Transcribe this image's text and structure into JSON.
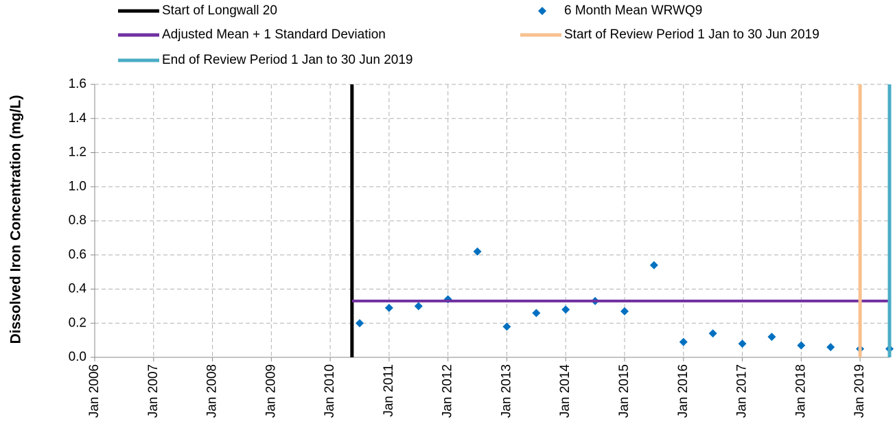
{
  "chart_data": {
    "type": "scatter",
    "y_label": "Dissolved Iron Concentration (mg/L)",
    "xlim": [
      2006,
      2019.5
    ],
    "xticks": [
      {
        "value": 2006,
        "label": "Jan 2006"
      },
      {
        "value": 2007,
        "label": "Jan 2007"
      },
      {
        "value": 2008,
        "label": "Jan 2008"
      },
      {
        "value": 2009,
        "label": "Jan 2009"
      },
      {
        "value": 2010,
        "label": "Jan 2010"
      },
      {
        "value": 2011,
        "label": "Jan 2011"
      },
      {
        "value": 2012,
        "label": "Jan 2012"
      },
      {
        "value": 2013,
        "label": "Jan 2013"
      },
      {
        "value": 2014,
        "label": "Jan 2014"
      },
      {
        "value": 2015,
        "label": "Jan 2015"
      },
      {
        "value": 2016,
        "label": "Jan 2016"
      },
      {
        "value": 2017,
        "label": "Jan 2017"
      },
      {
        "value": 2018,
        "label": "Jan 2018"
      },
      {
        "value": 2019,
        "label": "Jan 2019"
      }
    ],
    "ylim": [
      0,
      1.6
    ],
    "yticks": [
      {
        "value": 0,
        "label": "0.0"
      },
      {
        "value": 0.2,
        "label": "0.2"
      },
      {
        "value": 0.4,
        "label": "0.4"
      },
      {
        "value": 0.6,
        "label": "0.6"
      },
      {
        "value": 0.8,
        "label": "0.8"
      },
      {
        "value": 1,
        "label": "1.0"
      },
      {
        "value": 1.2,
        "label": "1.2"
      },
      {
        "value": 1.4,
        "label": "1.4"
      },
      {
        "value": 1.6,
        "label": "1.6"
      }
    ],
    "grid": true,
    "series": [
      {
        "name": "Start of Longwall 20",
        "color": "#000000",
        "mode": "line",
        "x": [
          2010.37,
          2010.37
        ],
        "values": [
          0,
          1.6
        ]
      },
      {
        "name": "6 Month Mean WRWQ9",
        "color": "#0070c0",
        "mode": "marker",
        "x": [
          2010.5,
          2011,
          2011.5,
          2012,
          2012.5,
          2013,
          2013.5,
          2014,
          2014.5,
          2015,
          2015.5,
          2016,
          2016.5,
          2017,
          2017.5,
          2018,
          2018.5,
          2019,
          2019.5
        ],
        "values": [
          0.2,
          0.29,
          0.3,
          0.34,
          0.62,
          0.18,
          0.26,
          0.28,
          0.33,
          0.27,
          0.54,
          0.09,
          0.14,
          0.08,
          0.12,
          0.07,
          0.06,
          0.05,
          0.05
        ]
      },
      {
        "name": "Adjusted Mean + 1 Standard Deviation",
        "color": "#7030a0",
        "mode": "line",
        "x": [
          2010.37,
          2019.5
        ],
        "values": [
          0.33,
          0.33
        ]
      },
      {
        "name": "Start of Review Period 1 Jan to 30 Jun 2019",
        "color": "#f8c08f",
        "mode": "line",
        "x": [
          2019,
          2019
        ],
        "values": [
          0,
          1.6
        ]
      },
      {
        "name": "End of Review Period 1 Jan to 30 Jun 2019",
        "color": "#4bacc6",
        "mode": "line",
        "x": [
          2019.5,
          2019.5
        ],
        "values": [
          0,
          1.6
        ]
      }
    ]
  }
}
